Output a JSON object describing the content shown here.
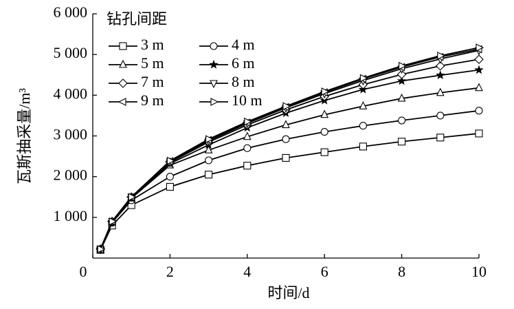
{
  "chart_data": {
    "type": "line",
    "x_label": "时间/d",
    "y_label": "瓦斯抽采量/m³",
    "legend_title": "钻孔间距",
    "x": [
      0.2,
      0.5,
      1,
      2,
      3,
      4,
      5,
      6,
      7,
      8,
      9,
      10
    ],
    "xlim": [
      0,
      10
    ],
    "xticks": [
      0,
      2,
      4,
      6,
      8,
      10
    ],
    "ylim": [
      0,
      6000
    ],
    "yticks": [
      {
        "value": 1000,
        "label": "1 000"
      },
      {
        "value": 2000,
        "label": "2 000"
      },
      {
        "value": 3000,
        "label": "3 000"
      },
      {
        "value": 4000,
        "label": "4 000"
      },
      {
        "value": 5000,
        "label": "5 000"
      },
      {
        "value": 6000,
        "label": "6 000"
      }
    ],
    "grid": false,
    "series": [
      {
        "name": "3 m",
        "color": "#000000",
        "marker": "square",
        "values": [
          200,
          800,
          1300,
          1750,
          2050,
          2270,
          2460,
          2600,
          2740,
          2860,
          2960,
          3060
        ]
      },
      {
        "name": "4 m",
        "color": "#000000",
        "marker": "circle",
        "values": [
          220,
          870,
          1420,
          2000,
          2400,
          2700,
          2920,
          3100,
          3250,
          3380,
          3500,
          3620
        ]
      },
      {
        "name": "5 m",
        "color": "#000000",
        "marker": "triangle-up",
        "values": [
          220,
          880,
          1470,
          2280,
          2650,
          2980,
          3270,
          3520,
          3730,
          3920,
          4060,
          4180
        ]
      },
      {
        "name": "6 m",
        "color": "#000000",
        "marker": "star",
        "values": [
          220,
          890,
          1480,
          2320,
          2780,
          3200,
          3560,
          3870,
          4140,
          4350,
          4490,
          4620
        ]
      },
      {
        "name": "7 m",
        "color": "#000000",
        "marker": "diamond",
        "values": [
          220,
          900,
          1500,
          2350,
          2850,
          3270,
          3640,
          3970,
          4260,
          4510,
          4720,
          4880
        ]
      },
      {
        "name": "8 m",
        "color": "#000000",
        "marker": "triangle-down",
        "values": [
          220,
          900,
          1500,
          2370,
          2880,
          3310,
          3690,
          4040,
          4360,
          4650,
          4890,
          5100
        ]
      },
      {
        "name": "9 m",
        "color": "#000000",
        "marker": "triangle-left",
        "values": [
          220,
          900,
          1500,
          2380,
          2900,
          3330,
          3710,
          4070,
          4400,
          4690,
          4940,
          5130
        ]
      },
      {
        "name": "10 m",
        "color": "#000000",
        "marker": "triangle-right",
        "values": [
          220,
          900,
          1500,
          2390,
          2920,
          3350,
          3730,
          4090,
          4420,
          4720,
          4970,
          5170
        ]
      }
    ]
  }
}
